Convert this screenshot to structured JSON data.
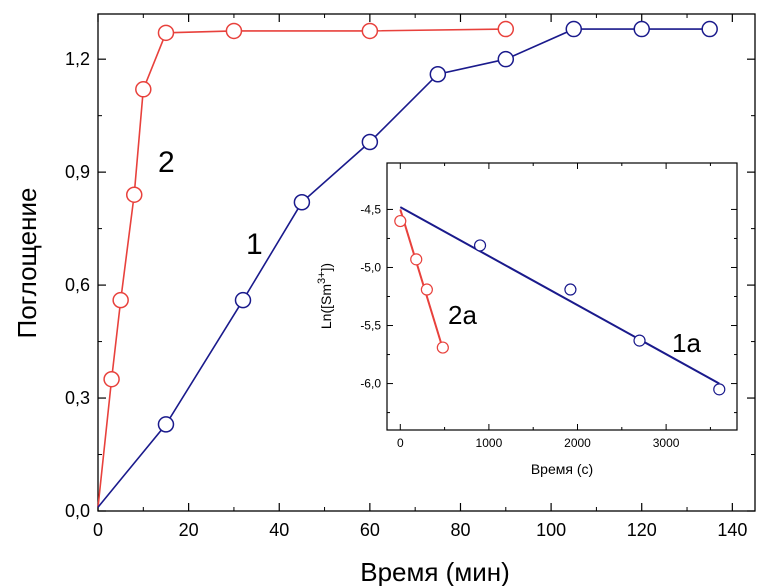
{
  "chart_data": [
    {
      "type": "scatter",
      "xlabel": "Время (мин)",
      "ylabel": "Поглощение",
      "xlim": [
        0,
        145
      ],
      "ylim": [
        0,
        1.32
      ],
      "xticks": [
        "0",
        "20",
        "40",
        "60",
        "80",
        "100",
        "120",
        "140"
      ],
      "yticks": [
        "0,0",
        "0,3",
        "0,6",
        "0,9",
        "1,2"
      ],
      "series": [
        {
          "name": "2",
          "color": "#e8413c",
          "marker": "open-circle",
          "line": true,
          "points": [
            [
              0,
              0.01
            ],
            [
              3,
              0.35
            ],
            [
              5,
              0.56
            ],
            [
              8,
              0.84
            ],
            [
              10,
              1.12
            ],
            [
              15,
              1.27
            ],
            [
              30,
              1.275
            ],
            [
              60,
              1.275
            ],
            [
              90,
              1.28
            ]
          ]
        },
        {
          "name": "1",
          "color": "#1a1a8c",
          "marker": "open-circle",
          "line": true,
          "points": [
            [
              0,
              0.01
            ],
            [
              15,
              0.23
            ],
            [
              32,
              0.56
            ],
            [
              45,
              0.82
            ],
            [
              60,
              0.98
            ],
            [
              75,
              1.16
            ],
            [
              90,
              1.2
            ],
            [
              105,
              1.28
            ],
            [
              120,
              1.28
            ],
            [
              135,
              1.28
            ]
          ]
        }
      ]
    },
    {
      "type": "scatter",
      "xlabel": "Время (с)",
      "ylabel_base": "Ln([Sm",
      "ylabel_sup": "3+",
      "ylabel_end": "])",
      "xlim": [
        -150,
        3800
      ],
      "ylim": [
        -6.4,
        -4.1
      ],
      "xticks": [
        "0",
        "1000",
        "2000",
        "3000"
      ],
      "yticks": [
        "-4,5",
        "-5,0",
        "-5,5",
        "-6,0"
      ],
      "series": [
        {
          "name": "2a",
          "color": "#e8413c",
          "marker": "open-circle",
          "points": [
            [
              0,
              -4.6
            ],
            [
              180,
              -4.93
            ],
            [
              300,
              -5.19
            ],
            [
              480,
              -5.69
            ]
          ],
          "fit": [
            [
              0,
              -4.5
            ],
            [
              480,
              -5.7
            ]
          ]
        },
        {
          "name": "1a",
          "color": "#1a1a8c",
          "marker": "open-circle",
          "points": [
            [
              900,
              -4.81
            ],
            [
              1920,
              -5.19
            ],
            [
              2700,
              -5.63
            ],
            [
              3600,
              -6.05
            ]
          ],
          "fit": [
            [
              0,
              -4.48
            ],
            [
              3600,
              -6.0
            ]
          ]
        }
      ]
    }
  ]
}
